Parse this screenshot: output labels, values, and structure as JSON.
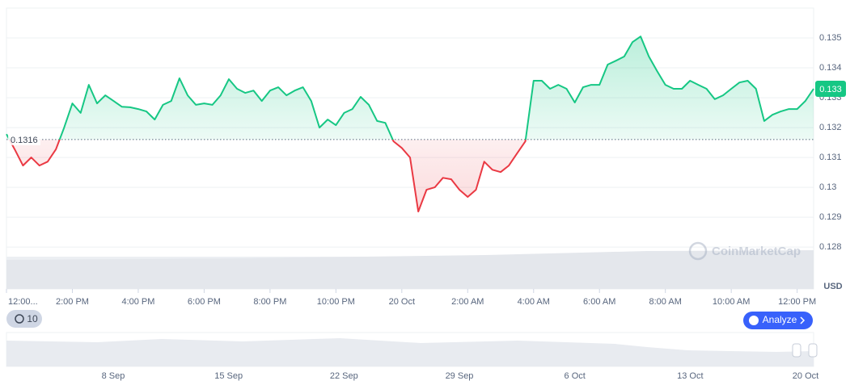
{
  "chart_data": {
    "type": "line",
    "x": [
      0,
      0.25,
      0.5,
      0.75,
      1,
      1.25,
      1.5,
      1.75,
      2,
      2.25,
      2.5,
      2.75,
      3,
      3.25,
      3.5,
      3.75,
      4,
      4.25,
      4.5,
      4.75,
      5,
      5.25,
      5.5,
      5.75,
      6,
      6.25,
      6.5,
      6.75,
      7,
      7.25,
      7.5,
      7.75,
      8,
      8.25,
      8.5,
      8.75,
      9,
      9.25,
      9.5,
      9.75,
      10,
      10.25,
      10.5,
      10.75,
      11,
      11.25,
      11.5,
      11.75,
      12,
      12.25,
      12.5,
      12.75,
      13,
      13.25,
      13.5,
      13.75,
      14,
      14.25,
      14.5,
      14.75,
      15,
      15.25,
      15.5,
      15.75,
      16,
      16.25,
      16.5,
      16.75,
      17,
      17.25,
      17.5,
      17.75,
      18,
      18.25,
      18.5,
      18.75,
      19,
      19.25,
      19.5,
      19.75,
      20,
      20.25,
      20.5,
      20.75,
      21,
      21.25,
      21.5,
      21.75,
      22,
      22.25,
      22.5,
      22.75,
      23,
      23.25,
      23.5,
      23.75,
      24,
      24.25,
      24.5
    ],
    "series": [
      {
        "name": "Price",
        "color": "#16c784",
        "values": [
          0.13178,
          0.13127,
          0.13073,
          0.131,
          0.13073,
          0.13086,
          0.13127,
          0.132,
          0.13281,
          0.13249,
          0.13343,
          0.13281,
          0.13308,
          0.13289,
          0.1327,
          0.13268,
          0.13262,
          0.13254,
          0.13227,
          0.13276,
          0.13289,
          0.13365,
          0.13308,
          0.13276,
          0.13281,
          0.13276,
          0.13308,
          0.13362,
          0.1333,
          0.13316,
          0.13324,
          0.13289,
          0.13324,
          0.13335,
          0.13308,
          0.13324,
          0.13335,
          0.13289,
          0.132,
          0.13227,
          0.13208,
          0.13249,
          0.13262,
          0.13303,
          0.13276,
          0.13222,
          0.13216,
          0.13154,
          0.13132,
          0.131,
          0.12919,
          0.12992,
          0.13,
          0.13032,
          0.13027,
          0.12992,
          0.12968,
          0.12992,
          0.13086,
          0.13059,
          0.13051,
          0.13073,
          0.13114,
          0.13154,
          0.13357,
          0.13357,
          0.1333,
          0.13343,
          0.1333,
          0.13284,
          0.13335,
          0.13343,
          0.13343,
          0.13411,
          0.13424,
          0.13438,
          0.13486,
          0.13505,
          0.13438,
          0.13389,
          0.13343,
          0.1333,
          0.1333,
          0.13357,
          0.13343,
          0.1333,
          0.13295,
          0.13308,
          0.1333,
          0.13351,
          0.13357,
          0.1333,
          0.13222,
          0.13243,
          0.13254,
          0.13262,
          0.13262,
          0.13289,
          0.1333
        ]
      }
    ],
    "below_color": "#ea3943",
    "baseline": 0.1316,
    "current_price": {
      "value": 0.1333,
      "label": "0.133"
    },
    "ylim": [
      0.1266,
      0.136
    ],
    "yticks": [
      0.128,
      0.129,
      0.13,
      0.131,
      0.132,
      0.133,
      0.134,
      0.135
    ],
    "xlim": [
      0,
      24.5
    ],
    "xticks": [
      {
        "value": 0,
        "label": "12:00..."
      },
      {
        "value": 2,
        "label": "2:00 PM"
      },
      {
        "value": 4,
        "label": "4:00 PM"
      },
      {
        "value": 6,
        "label": "6:00 PM"
      },
      {
        "value": 8,
        "label": "8:00 PM"
      },
      {
        "value": 10,
        "label": "10:00 PM"
      },
      {
        "value": 12,
        "label": "20 Oct"
      },
      {
        "value": 14,
        "label": "2:00 AM"
      },
      {
        "value": 16,
        "label": "4:00 AM"
      },
      {
        "value": 18,
        "label": "6:00 AM"
      },
      {
        "value": 20,
        "label": "8:00 AM"
      },
      {
        "value": 22,
        "label": "10:00 AM"
      },
      {
        "value": 24,
        "label": "12:00 PM"
      }
    ],
    "currency": "USD",
    "grid": true
  },
  "history_badge": "10",
  "analyze_button": "Analyze",
  "watermark": "CoinMarketCap",
  "navigator": {
    "labels": [
      "8 Sep",
      "15 Sep",
      "22 Sep",
      "29 Sep",
      "6 Oct",
      "13 Oct",
      "20 Oct"
    ]
  }
}
